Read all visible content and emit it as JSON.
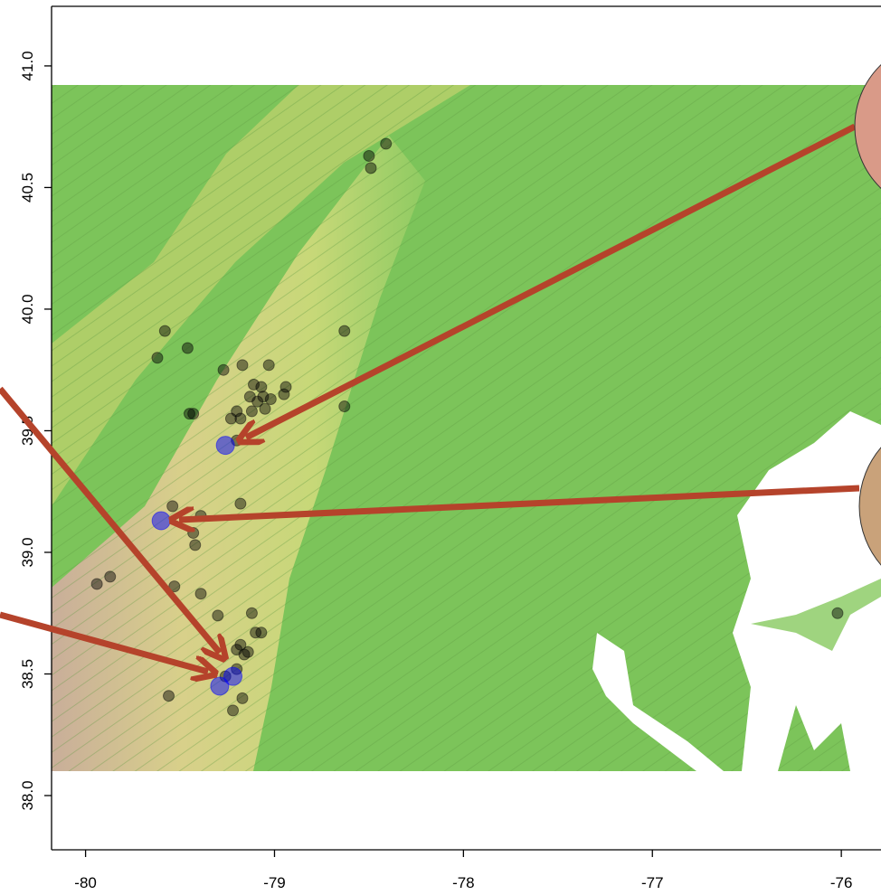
{
  "chart_data": {
    "type": "scatter",
    "xlim": [
      -80.18,
      -75.79
    ],
    "ylim": [
      37.777,
      41.245
    ],
    "xticks": [
      -80,
      -79,
      -78,
      -77,
      -76
    ],
    "yticks": [
      {
        "value": 41,
        "label": "41.0"
      },
      40.5,
      {
        "value": 40,
        "label": "40.0"
      },
      39.5,
      {
        "value": 39,
        "label": "39.0"
      },
      38.5,
      {
        "value": 38,
        "label": "38.0"
      }
    ],
    "series": [
      {
        "color": "#000000",
        "alpha": 0.45,
        "x": [
          -78.5,
          -78.41,
          -78.49,
          -79.58,
          -79.62,
          -79.46,
          -78.63,
          -79.27,
          -79.17,
          -79.03,
          -79.11,
          -79.07,
          -78.94,
          -79.13,
          -79.09,
          -79.06,
          -79.02,
          -78.95,
          -79.2,
          -79.23,
          -79.18,
          -79.12,
          -79.05,
          -79.45,
          -79.43,
          -78.63,
          -79.2,
          -79.54,
          -79.18,
          -79.43,
          -79.42,
          -79.39,
          -79.94,
          -79.87,
          -79.53,
          -79.39,
          -79.3,
          -79.12,
          -79.1,
          -79.07,
          -79.18,
          -79.2,
          -79.16,
          -79.14,
          -79.2,
          -79.26,
          -79.56,
          -79.17,
          -79.22,
          -76.02
        ],
        "y": [
          40.63,
          40.68,
          40.58,
          39.91,
          39.8,
          39.84,
          39.91,
          39.75,
          39.77,
          39.77,
          39.69,
          39.68,
          39.68,
          39.64,
          39.62,
          39.64,
          39.63,
          39.65,
          39.58,
          39.55,
          39.55,
          39.58,
          39.59,
          39.57,
          39.57,
          39.6,
          39.46,
          39.19,
          39.2,
          39.08,
          39.03,
          39.15,
          38.87,
          38.9,
          38.86,
          38.83,
          38.74,
          38.75,
          38.67,
          38.67,
          38.62,
          38.6,
          38.58,
          38.59,
          38.52,
          38.49,
          38.41,
          38.4,
          38.35,
          38.75
        ]
      },
      {
        "color": "#0000ff",
        "alpha": 0.5,
        "x": [
          -79.26,
          -79.6,
          -79.22,
          -79.29
        ],
        "y": [
          39.44,
          39.13,
          38.49,
          38.45
        ]
      }
    ]
  }
}
